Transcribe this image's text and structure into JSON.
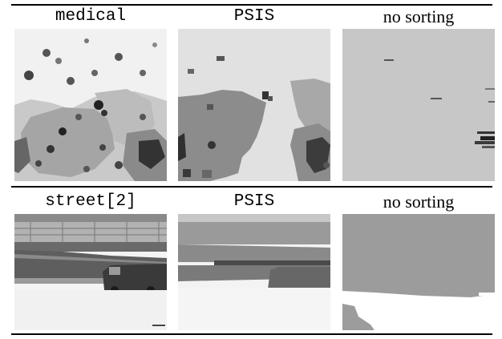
{
  "rows": [
    {
      "headers": [
        "medical",
        "PSIS",
        "no sorting"
      ]
    },
    {
      "headers": [
        "street[2]",
        "PSIS",
        "no sorting"
      ]
    }
  ],
  "colors": {
    "rule": "#000000",
    "background": "#ffffff"
  }
}
